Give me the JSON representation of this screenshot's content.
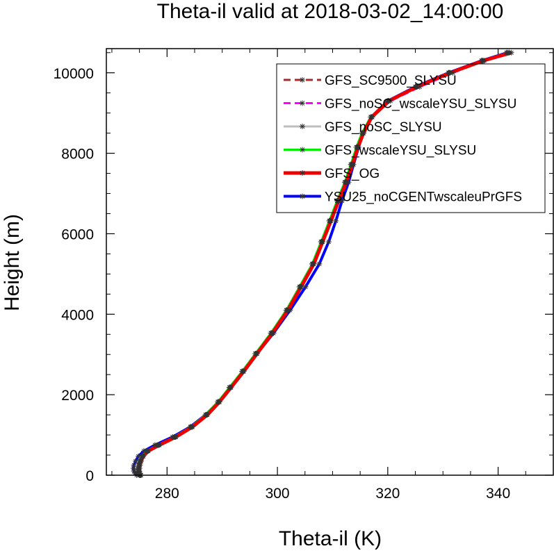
{
  "chart_data": {
    "type": "line",
    "title": "Theta-il valid at 2018-03-02_14:00:00",
    "xlabel": "Theta-il (K)",
    "ylabel": "Height (m)",
    "xlim": [
      269,
      350
    ],
    "ylim": [
      0,
      10600
    ],
    "x_ticks": [
      280,
      300,
      320,
      340
    ],
    "y_ticks": [
      0,
      2000,
      4000,
      6000,
      8000,
      10000
    ],
    "x_tick_labels": [
      "280",
      "300",
      "320",
      "340"
    ],
    "y_tick_labels": [
      "0",
      "2000",
      "4000",
      "6000",
      "8000",
      "10000"
    ],
    "grid": false,
    "legend_position": "top-right",
    "heights": [
      0,
      50,
      100,
      170,
      250,
      350,
      470,
      600,
      750,
      950,
      1200,
      1500,
      1820,
      2180,
      2580,
      3020,
      3530,
      4100,
      4680,
      5250,
      5800,
      6320,
      6820,
      7280,
      7720,
      8150,
      8500,
      8900,
      9300,
      9650,
      10000,
      10300,
      10500
    ],
    "series": [
      {
        "name": "GFS_SC9500_SLYSU",
        "color": "#a52a2a",
        "dash": "10,6",
        "width": 3,
        "x": [
          275.2,
          275.0,
          274.9,
          274.9,
          275.0,
          275.2,
          275.6,
          276.5,
          278.5,
          281.5,
          284.5,
          287.2,
          289.4,
          291.5,
          293.8,
          296.2,
          299.0,
          301.8,
          304.2,
          306.5,
          308.1,
          309.6,
          311.0,
          312.4,
          313.5,
          314.5,
          315.5,
          317.0,
          320.0,
          325.0,
          331.0,
          337.0,
          342.0
        ]
      },
      {
        "name": "GFS_noSC_wscaleYSU_SLYSU",
        "color": "#ff00ff",
        "dash": "10,6",
        "width": 3,
        "x": [
          275.0,
          274.8,
          274.7,
          274.7,
          274.8,
          275.0,
          275.4,
          276.3,
          278.3,
          281.3,
          284.3,
          287.0,
          289.2,
          291.3,
          293.6,
          296.0,
          298.8,
          301.6,
          304.0,
          306.3,
          307.9,
          309.4,
          310.9,
          312.3,
          313.4,
          314.4,
          315.5,
          317.2,
          320.5,
          325.8,
          331.8,
          337.5,
          341.5
        ]
      },
      {
        "name": "GFS_noSC_SLYSU",
        "color": "#bebebe",
        "dash": "",
        "width": 3,
        "x": [
          275.1,
          274.9,
          274.8,
          274.8,
          274.9,
          275.1,
          275.5,
          276.4,
          278.4,
          281.4,
          284.4,
          287.1,
          289.3,
          291.4,
          293.7,
          296.1,
          298.9,
          301.7,
          304.1,
          306.4,
          308.0,
          309.5,
          310.9,
          312.3,
          313.4,
          314.4,
          315.4,
          317.0,
          320.1,
          325.2,
          331.2,
          337.2,
          342.0
        ]
      },
      {
        "name": "GFS_wscaleYSU_SLYSU",
        "color": "#00ee00",
        "dash": "",
        "width": 3,
        "x": [
          275.0,
          274.8,
          274.7,
          274.7,
          274.8,
          275.0,
          275.4,
          276.3,
          278.3,
          281.3,
          284.3,
          287.0,
          289.2,
          291.3,
          293.6,
          296.0,
          298.8,
          301.6,
          304.0,
          306.3,
          307.9,
          309.4,
          310.8,
          312.2,
          313.3,
          314.3,
          315.3,
          316.9,
          320.0,
          325.1,
          331.1,
          337.1,
          341.8
        ]
      },
      {
        "name": "GFS_OG",
        "color": "#ee0000",
        "dash": "",
        "width": 5,
        "x": [
          275.3,
          275.1,
          275.0,
          275.0,
          275.1,
          275.3,
          275.7,
          276.6,
          278.6,
          281.6,
          284.6,
          287.3,
          289.5,
          291.6,
          293.9,
          296.3,
          299.1,
          301.9,
          304.3,
          306.6,
          308.2,
          309.7,
          311.1,
          312.5,
          313.6,
          314.6,
          315.6,
          317.1,
          320.2,
          325.3,
          331.3,
          337.3,
          342.4
        ]
      },
      {
        "name": "YSU25_noCGENTwscaleuPrGFS",
        "color": "#0000ff",
        "dash": "",
        "width": 4,
        "x": [
          274.5,
          274.2,
          274.0,
          273.9,
          274.0,
          274.3,
          274.8,
          275.8,
          277.8,
          281.0,
          284.2,
          287.0,
          289.3,
          291.4,
          293.8,
          296.3,
          299.3,
          302.3,
          305.1,
          307.6,
          309.3,
          310.6,
          311.7,
          312.9,
          313.8,
          314.7,
          315.6,
          317.0,
          320.0,
          325.0,
          331.0,
          337.0,
          341.7
        ]
      }
    ]
  }
}
